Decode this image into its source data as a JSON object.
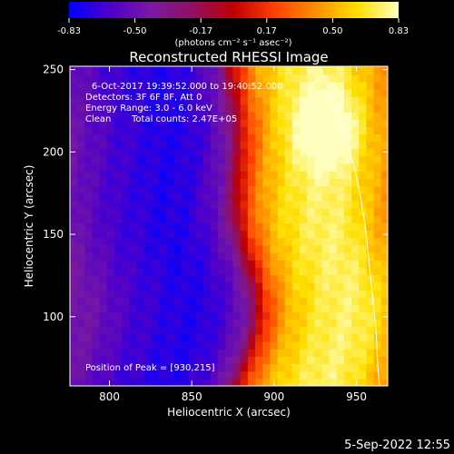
{
  "chart_data": {
    "type": "heatmap",
    "title": "Reconstructed RHESSI Image",
    "xlabel": "Heliocentric X (arcsec)",
    "ylabel": "Heliocentric Y (arcsec)",
    "xlim": [
      776,
      969
    ],
    "ylim": [
      58,
      252
    ],
    "x_ticks": [
      800,
      850,
      900,
      950
    ],
    "y_ticks": [
      100,
      150,
      200,
      250
    ],
    "colorbar": {
      "min": -0.83,
      "max": 0.83,
      "ticks": [
        "-0.83",
        "-0.50",
        "-0.17",
        "0.17",
        "0.50",
        "0.83"
      ],
      "units": "(photons cm⁻² s⁻¹ asec⁻²)",
      "colors": [
        "#0000ff",
        "#5000c8",
        "#7a1aa0",
        "#901060",
        "#c00000",
        "#ff4000",
        "#ff9000",
        "#ffe000",
        "#ffffc0"
      ]
    },
    "annotations": {
      "time_range": "6-Oct-2017 19:39:52.000 to 19:40:52.000",
      "detectors": "Detectors: 3F 6F 8F, Att 0",
      "energy": "Energy Range: 3.0 - 6.0 keV",
      "method": "Clean",
      "counts": "Total counts: 2.47E+05",
      "peak": "Position of Peak = [930,215]"
    },
    "peak_position": [
      930,
      215
    ],
    "limb_curve": [
      [
        928,
        252
      ],
      [
        936,
        230
      ],
      [
        943,
        210
      ],
      [
        949,
        190
      ],
      [
        953,
        170
      ],
      [
        956,
        150
      ],
      [
        958,
        130
      ],
      [
        960,
        110
      ],
      [
        962,
        90
      ],
      [
        963,
        70
      ],
      [
        964,
        58
      ]
    ],
    "brightness_profile": {
      "x": [
        776,
        790,
        805,
        820,
        835,
        850,
        862,
        872,
        880,
        888,
        896,
        905,
        915,
        925,
        935,
        945,
        955,
        969
      ],
      "value": [
        -0.45,
        -0.55,
        -0.65,
        -0.7,
        -0.75,
        -0.72,
        -0.62,
        -0.45,
        -0.05,
        0.25,
        0.45,
        0.58,
        0.66,
        0.72,
        0.74,
        0.7,
        0.6,
        0.45
      ]
    }
  },
  "footer": {
    "timestamp": "5-Sep-2022 12:55"
  }
}
